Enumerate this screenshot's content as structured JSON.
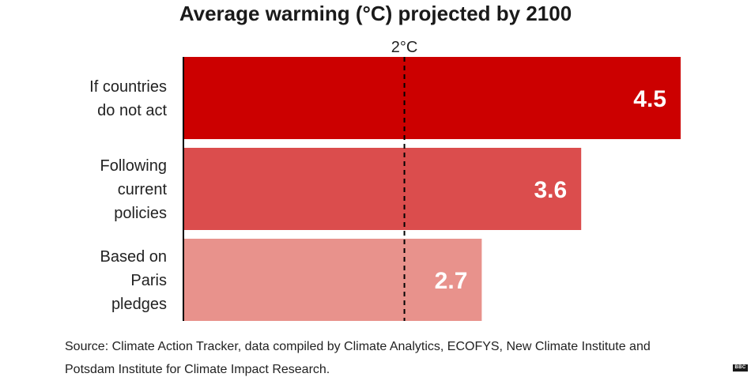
{
  "title": "Average warming (°C) projected by 2100",
  "reference_label": "2°C",
  "source": "Source: Climate Action Tracker, data compiled by Climate Analytics, ECOFYS, New Climate Institute and Potsdam Institute for Climate Impact Research.",
  "logo_text": "BBC",
  "colors": {
    "bar1": "#cc0000",
    "bar2": "#db4d4d",
    "bar3": "#e8928c",
    "axis": "#000000",
    "reference_line": "#000000",
    "value_text": "#ffffff"
  },
  "chart_data": {
    "type": "bar",
    "orientation": "horizontal",
    "categories": [
      [
        "If countries",
        "do not act"
      ],
      [
        "Following",
        "current",
        "policies"
      ],
      [
        "Based on",
        "Paris",
        "pledges"
      ]
    ],
    "values": [
      4.5,
      3.6,
      2.7
    ],
    "data_labels": [
      "4.5",
      "3.6",
      "2.7"
    ],
    "reference_line": {
      "value": 2,
      "label": "2°C",
      "style": "dashed"
    },
    "xlim": [
      0,
      4.5
    ],
    "grid": false,
    "xlabel": "",
    "ylabel": ""
  }
}
